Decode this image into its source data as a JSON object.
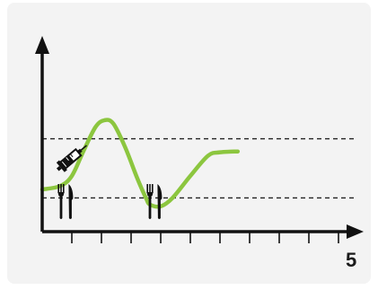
{
  "chart_data": {
    "type": "line",
    "title": "",
    "xlabel": "",
    "ylabel": "",
    "x_end_label": "5",
    "x_ticks": [
      0,
      0.5,
      1,
      1.5,
      2,
      2.5,
      3,
      3.5,
      4,
      4.5,
      5
    ],
    "xlim": [
      0,
      5
    ],
    "ylim": [
      0,
      1
    ],
    "thresholds": [
      {
        "name": "upper",
        "value": 0.55
      },
      {
        "name": "lower",
        "value": 0.2
      }
    ],
    "series": [
      {
        "color": "#8cc63f",
        "points": [
          [
            0.0,
            0.25
          ],
          [
            0.3,
            0.27
          ],
          [
            0.5,
            0.33
          ],
          [
            0.7,
            0.48
          ],
          [
            0.9,
            0.62
          ],
          [
            1.05,
            0.66
          ],
          [
            1.2,
            0.64
          ],
          [
            1.4,
            0.5
          ],
          [
            1.6,
            0.32
          ],
          [
            1.75,
            0.2
          ],
          [
            1.82,
            0.16
          ],
          [
            2.0,
            0.15
          ],
          [
            2.2,
            0.2
          ],
          [
            2.5,
            0.33
          ],
          [
            2.8,
            0.45
          ],
          [
            3.0,
            0.47
          ],
          [
            3.3,
            0.475
          ]
        ]
      }
    ],
    "events": [
      {
        "type": "insulin",
        "icon": "syringe-icon",
        "x": 0.3
      },
      {
        "type": "meal",
        "icon": "fork-knife-icon",
        "x": 0.4
      },
      {
        "type": "meal",
        "icon": "fork-knife-icon",
        "x": 1.9
      }
    ],
    "colors": {
      "axis": "#111111",
      "curve": "#8cc63f",
      "threshold": "#222222",
      "background": "#f3f3f3"
    }
  }
}
